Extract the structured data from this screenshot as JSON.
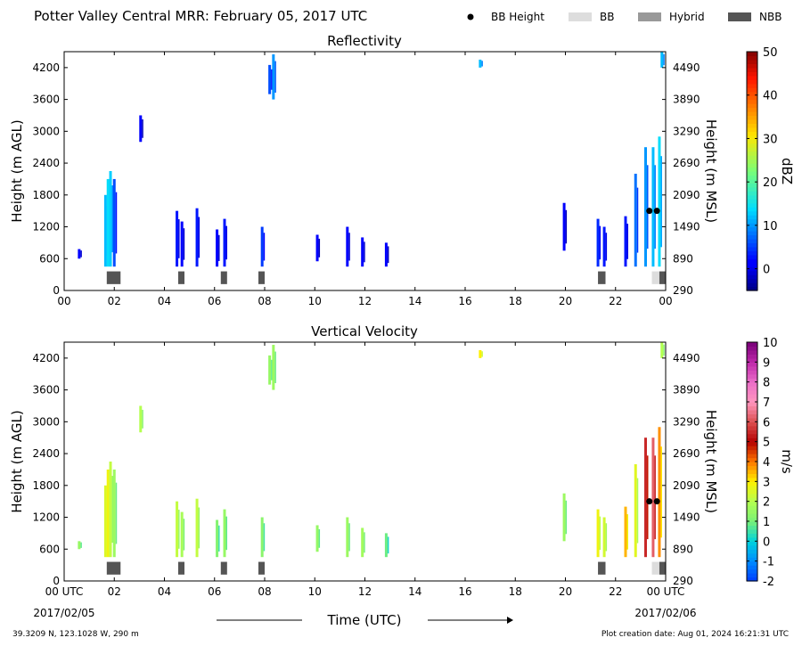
{
  "header": {
    "title": "Potter Valley Central MRR:  February 05, 2017 UTC",
    "legend": [
      {
        "label": "BB Height",
        "color": "#000000",
        "kind": "dot"
      },
      {
        "label": "BB",
        "color": "#dddddd",
        "kind": "box"
      },
      {
        "label": "Hybrid",
        "color": "#999999",
        "kind": "box"
      },
      {
        "label": "NBB",
        "color": "#555555",
        "kind": "box"
      }
    ]
  },
  "footer": {
    "location": "39.3209 N, 123.1028 W, 290 m",
    "created": "Plot creation date: Aug 01, 2024 16:21:31 UTC",
    "xlabel": "Time (UTC)"
  },
  "chart_data": [
    {
      "type": "heatmap",
      "title": "Reflectivity",
      "ylabel": "Height (m AGL)",
      "ylabel_right": "Height (m MSL)",
      "ylim": [
        0,
        4500
      ],
      "yticks": [
        0,
        600,
        1200,
        1800,
        2400,
        3000,
        3600,
        4200
      ],
      "yticks_right": [
        "290",
        "890",
        "1490",
        "2090",
        "2690",
        "3290",
        "3890",
        "4490"
      ],
      "xlim": [
        0,
        24
      ],
      "xtick_labels": [
        "00",
        "02",
        "04",
        "06",
        "08",
        "10",
        "12",
        "14",
        "16",
        "18",
        "20",
        "22",
        "00"
      ],
      "colorbar": {
        "label": "dBZ",
        "min": -5,
        "max": 50,
        "ticks": [
          0,
          10,
          20,
          30,
          40,
          50
        ]
      },
      "echoes": [
        {
          "t": 0.6,
          "bot": 600,
          "top": 780,
          "v": 2
        },
        {
          "t": 1.65,
          "bot": 450,
          "top": 1800,
          "v": 12
        },
        {
          "t": 1.75,
          "bot": 450,
          "top": 2100,
          "v": 14
        },
        {
          "t": 1.85,
          "bot": 450,
          "top": 2250,
          "v": 13
        },
        {
          "t": 2.0,
          "bot": 450,
          "top": 2100,
          "v": 6
        },
        {
          "t": 3.05,
          "bot": 2800,
          "top": 3300,
          "v": 1
        },
        {
          "t": 4.5,
          "bot": 450,
          "top": 1500,
          "v": 3
        },
        {
          "t": 4.7,
          "bot": 450,
          "top": 1300,
          "v": 2
        },
        {
          "t": 5.3,
          "bot": 450,
          "top": 1550,
          "v": 3
        },
        {
          "t": 6.1,
          "bot": 450,
          "top": 1150,
          "v": 2
        },
        {
          "t": 6.4,
          "bot": 450,
          "top": 1350,
          "v": 3
        },
        {
          "t": 7.9,
          "bot": 450,
          "top": 1200,
          "v": 5
        },
        {
          "t": 8.2,
          "bot": 3700,
          "top": 4250,
          "v": 6
        },
        {
          "t": 8.35,
          "bot": 3600,
          "top": 4450,
          "v": 10
        },
        {
          "t": 10.1,
          "bot": 550,
          "top": 1050,
          "v": 1
        },
        {
          "t": 11.3,
          "bot": 450,
          "top": 1200,
          "v": 2
        },
        {
          "t": 11.9,
          "bot": 450,
          "top": 1000,
          "v": 2
        },
        {
          "t": 12.85,
          "bot": 450,
          "top": 900,
          "v": 1
        },
        {
          "t": 16.6,
          "bot": 4200,
          "top": 4350,
          "v": 12
        },
        {
          "t": 19.95,
          "bot": 750,
          "top": 1650,
          "v": 1
        },
        {
          "t": 21.3,
          "bot": 450,
          "top": 1350,
          "v": 4
        },
        {
          "t": 21.55,
          "bot": 450,
          "top": 1200,
          "v": 3
        },
        {
          "t": 22.4,
          "bot": 450,
          "top": 1400,
          "v": 3
        },
        {
          "t": 22.8,
          "bot": 450,
          "top": 2200,
          "v": 8
        },
        {
          "t": 23.2,
          "bot": 450,
          "top": 2700,
          "v": 10
        },
        {
          "t": 23.5,
          "bot": 450,
          "top": 2700,
          "v": 12
        },
        {
          "t": 23.75,
          "bot": 450,
          "top": 2900,
          "v": 14
        },
        {
          "t": 23.85,
          "bot": 4200,
          "top": 4500,
          "v": 12
        }
      ],
      "bright_band": [
        {
          "t": 23.35,
          "height": 1500
        },
        {
          "t": 23.65,
          "height": 1500
        }
      ],
      "bb_class": [
        {
          "start": 1.7,
          "end": 2.25,
          "kind": "NBB"
        },
        {
          "start": 4.55,
          "end": 4.8,
          "kind": "NBB"
        },
        {
          "start": 6.25,
          "end": 6.5,
          "kind": "NBB"
        },
        {
          "start": 7.75,
          "end": 8.0,
          "kind": "NBB"
        },
        {
          "start": 21.3,
          "end": 21.6,
          "kind": "NBB"
        },
        {
          "start": 23.45,
          "end": 23.75,
          "kind": "BB"
        },
        {
          "start": 23.75,
          "end": 24.0,
          "kind": "NBB"
        }
      ]
    },
    {
      "type": "heatmap",
      "title": "Vertical Velocity",
      "ylabel": "Height (m AGL)",
      "ylabel_right": "Height (m MSL)",
      "ylim": [
        0,
        4500
      ],
      "yticks": [
        0,
        600,
        1200,
        1800,
        2400,
        3000,
        3600,
        4200
      ],
      "yticks_right": [
        "290",
        "890",
        "1490",
        "2090",
        "2690",
        "3290",
        "3890",
        "4490"
      ],
      "xlim": [
        0,
        24
      ],
      "xtick_labels": [
        "00 UTC",
        "02",
        "04",
        "06",
        "08",
        "10",
        "12",
        "14",
        "16",
        "18",
        "20",
        "22",
        "00 UTC"
      ],
      "xtick_dates": [
        "2017/02/05",
        "2017/02/06"
      ],
      "colorbar": {
        "label": "m/s",
        "min": -2,
        "max": 10,
        "ticks": [
          -2,
          -1,
          0,
          1,
          2,
          3,
          4,
          5,
          6,
          7,
          8,
          9,
          10
        ]
      },
      "echoes": [
        {
          "t": 0.6,
          "bot": 600,
          "top": 750,
          "v": 1.5
        },
        {
          "t": 1.65,
          "bot": 450,
          "top": 1800,
          "v": 2.5
        },
        {
          "t": 1.75,
          "bot": 450,
          "top": 2100,
          "v": 2.8
        },
        {
          "t": 1.85,
          "bot": 450,
          "top": 2250,
          "v": 2.2
        },
        {
          "t": 2.0,
          "bot": 450,
          "top": 2100,
          "v": 1.6
        },
        {
          "t": 3.05,
          "bot": 2800,
          "top": 3300,
          "v": 2.0
        },
        {
          "t": 4.5,
          "bot": 450,
          "top": 1500,
          "v": 2.2
        },
        {
          "t": 4.7,
          "bot": 450,
          "top": 1300,
          "v": 1.8
        },
        {
          "t": 5.3,
          "bot": 450,
          "top": 1550,
          "v": 2.2
        },
        {
          "t": 6.1,
          "bot": 450,
          "top": 1150,
          "v": 1.2
        },
        {
          "t": 6.4,
          "bot": 450,
          "top": 1350,
          "v": 1.5
        },
        {
          "t": 7.9,
          "bot": 450,
          "top": 1200,
          "v": 1.3
        },
        {
          "t": 8.2,
          "bot": 3700,
          "top": 4250,
          "v": 1.5
        },
        {
          "t": 8.35,
          "bot": 3600,
          "top": 4450,
          "v": 1.6
        },
        {
          "t": 10.1,
          "bot": 550,
          "top": 1050,
          "v": 1.5
        },
        {
          "t": 11.3,
          "bot": 450,
          "top": 1200,
          "v": 1.6
        },
        {
          "t": 11.9,
          "bot": 450,
          "top": 1000,
          "v": 1.7
        },
        {
          "t": 12.85,
          "bot": 450,
          "top": 900,
          "v": 0.9
        },
        {
          "t": 16.6,
          "bot": 4200,
          "top": 4350,
          "v": 3.0
        },
        {
          "t": 19.95,
          "bot": 750,
          "top": 1650,
          "v": 1.6
        },
        {
          "t": 21.3,
          "bot": 450,
          "top": 1350,
          "v": 2.8
        },
        {
          "t": 21.55,
          "bot": 450,
          "top": 1200,
          "v": 2.4
        },
        {
          "t": 22.4,
          "bot": 450,
          "top": 1400,
          "v": 3.5
        },
        {
          "t": 22.8,
          "bot": 450,
          "top": 2200,
          "v": 2.6
        },
        {
          "t": 23.2,
          "bot": 450,
          "top": 2700,
          "v": 5.5
        },
        {
          "t": 23.5,
          "bot": 450,
          "top": 2700,
          "v": 6.2
        },
        {
          "t": 23.75,
          "bot": 450,
          "top": 2900,
          "v": 3.8
        },
        {
          "t": 23.85,
          "bot": 4200,
          "top": 4500,
          "v": 2.0
        }
      ],
      "bright_band": [
        {
          "t": 23.35,
          "height": 1500
        },
        {
          "t": 23.65,
          "height": 1500
        }
      ],
      "bb_class": [
        {
          "start": 1.7,
          "end": 2.25,
          "kind": "NBB"
        },
        {
          "start": 4.55,
          "end": 4.8,
          "kind": "NBB"
        },
        {
          "start": 6.25,
          "end": 6.5,
          "kind": "NBB"
        },
        {
          "start": 7.75,
          "end": 8.0,
          "kind": "NBB"
        },
        {
          "start": 21.3,
          "end": 21.6,
          "kind": "NBB"
        },
        {
          "start": 23.45,
          "end": 23.75,
          "kind": "BB"
        },
        {
          "start": 23.75,
          "end": 24.0,
          "kind": "NBB"
        }
      ]
    }
  ]
}
